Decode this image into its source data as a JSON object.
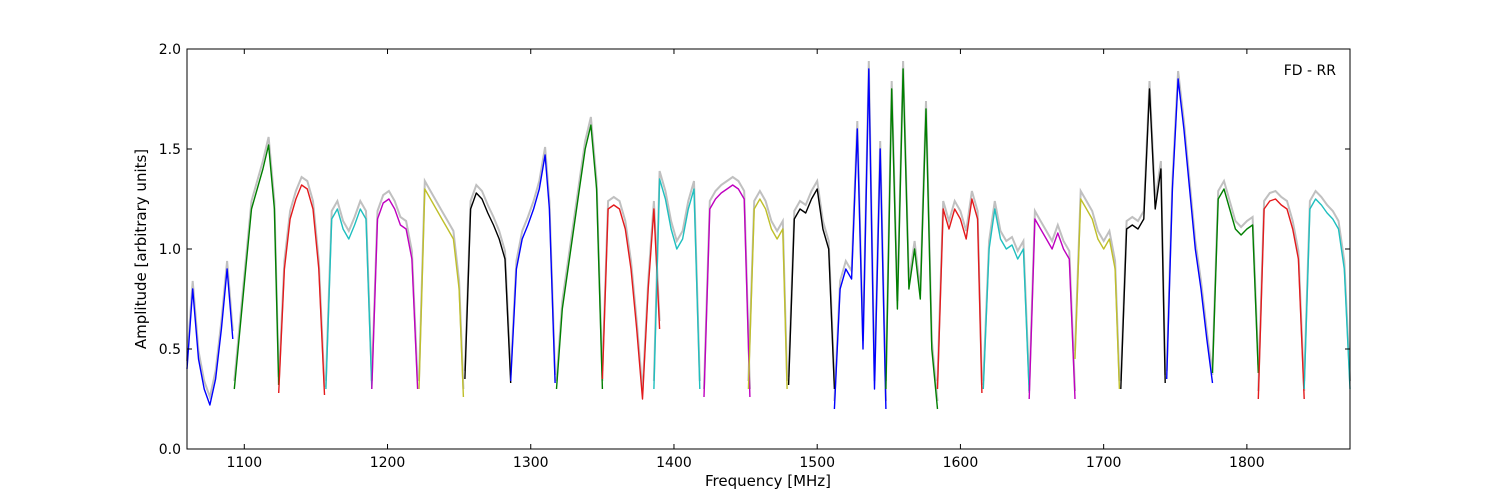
{
  "chart_data": {
    "type": "line",
    "xlabel": "Frequency [MHz]",
    "ylabel": "Amplitude [arbitrary units]",
    "annotation": "FD - RR",
    "xlim": [
      1060,
      1872
    ],
    "ylim": [
      0.0,
      2.0
    ],
    "xticks": [
      1100,
      1200,
      1300,
      1400,
      1500,
      1600,
      1700,
      1800
    ],
    "xtick_labels": [
      "1100",
      "1200",
      "1300",
      "1400",
      "1500",
      "1600",
      "1700",
      "1800"
    ],
    "yticks": [
      0.0,
      0.5,
      1.0,
      1.5,
      2.0
    ],
    "ytick_labels": [
      "0.0",
      "0.5",
      "1.0",
      "1.5",
      "2.0"
    ],
    "grid": false,
    "background_color": "#c0c0c0",
    "colors": {
      "blue": "#0000ff",
      "green": "#007f00",
      "red": "#e31a1c",
      "cyan": "#1fbfbf",
      "magenta": "#bf00bf",
      "yellow": "#bfbf2a",
      "black": "#000000"
    },
    "bands": [
      {
        "color": "blue",
        "x": [
          1060,
          1064,
          1068,
          1072,
          1076,
          1080,
          1084,
          1088,
          1092
        ],
        "y": [
          0.4,
          0.8,
          0.45,
          0.3,
          0.22,
          0.35,
          0.6,
          0.9,
          0.55
        ]
      },
      {
        "color": "green",
        "x": [
          1093,
          1097,
          1101,
          1105,
          1109,
          1113,
          1117,
          1121,
          1124
        ],
        "y": [
          0.3,
          0.6,
          0.9,
          1.2,
          1.3,
          1.4,
          1.52,
          1.2,
          0.32
        ]
      },
      {
        "color": "red",
        "x": [
          1124,
          1128,
          1132,
          1136,
          1140,
          1144,
          1148,
          1152,
          1156
        ],
        "y": [
          0.28,
          0.9,
          1.15,
          1.25,
          1.32,
          1.3,
          1.2,
          0.9,
          0.27
        ]
      },
      {
        "color": "cyan",
        "x": [
          1157,
          1161,
          1165,
          1169,
          1173,
          1177,
          1181,
          1185,
          1189
        ],
        "y": [
          0.3,
          1.15,
          1.2,
          1.1,
          1.05,
          1.12,
          1.2,
          1.15,
          0.3
        ]
      },
      {
        "color": "magenta",
        "x": [
          1189,
          1193,
          1197,
          1201,
          1205,
          1209,
          1213,
          1217,
          1221
        ],
        "y": [
          0.3,
          1.15,
          1.23,
          1.25,
          1.2,
          1.12,
          1.1,
          0.95,
          0.3
        ]
      },
      {
        "color": "yellow",
        "x": [
          1222,
          1226,
          1230,
          1234,
          1238,
          1242,
          1246,
          1250,
          1253
        ],
        "y": [
          0.3,
          1.3,
          1.25,
          1.2,
          1.15,
          1.1,
          1.05,
          0.8,
          0.26
        ]
      },
      {
        "color": "black",
        "x": [
          1254,
          1258,
          1262,
          1266,
          1270,
          1274,
          1278,
          1282,
          1286
        ],
        "y": [
          0.35,
          1.2,
          1.28,
          1.25,
          1.18,
          1.12,
          1.05,
          0.95,
          0.33
        ]
      },
      {
        "color": "blue",
        "x": [
          1286,
          1290,
          1294,
          1298,
          1302,
          1306,
          1310,
          1313,
          1317
        ],
        "y": [
          0.34,
          0.9,
          1.05,
          1.12,
          1.2,
          1.3,
          1.47,
          1.2,
          0.33
        ]
      },
      {
        "color": "green",
        "x": [
          1318,
          1322,
          1326,
          1330,
          1334,
          1338,
          1342,
          1346,
          1350
        ],
        "y": [
          0.3,
          0.7,
          0.9,
          1.1,
          1.3,
          1.5,
          1.62,
          1.3,
          0.3
        ]
      },
      {
        "color": "red",
        "x": [
          1350,
          1354,
          1358,
          1362,
          1366,
          1370,
          1374,
          1378,
          1382,
          1386,
          1390
        ],
        "y": [
          0.35,
          1.2,
          1.22,
          1.2,
          1.1,
          0.9,
          0.6,
          0.25,
          0.8,
          1.2,
          0.6
        ]
      },
      {
        "color": "cyan",
        "x": [
          1386,
          1390,
          1394,
          1398,
          1402,
          1406,
          1410,
          1414,
          1418
        ],
        "y": [
          0.3,
          1.35,
          1.25,
          1.1,
          1.0,
          1.05,
          1.2,
          1.3,
          0.3
        ]
      },
      {
        "color": "magenta",
        "x": [
          1421,
          1425,
          1429,
          1433,
          1437,
          1441,
          1445,
          1449,
          1453
        ],
        "y": [
          0.26,
          1.2,
          1.25,
          1.28,
          1.3,
          1.32,
          1.3,
          1.25,
          0.26
        ]
      },
      {
        "color": "yellow",
        "x": [
          1452,
          1456,
          1460,
          1464,
          1468,
          1472,
          1476,
          1479
        ],
        "y": [
          0.3,
          1.2,
          1.25,
          1.2,
          1.1,
          1.05,
          1.1,
          0.3
        ]
      },
      {
        "color": "black",
        "x": [
          1480,
          1484,
          1488,
          1492,
          1496,
          1500,
          1504,
          1508,
          1512
        ],
        "y": [
          0.32,
          1.15,
          1.2,
          1.18,
          1.25,
          1.3,
          1.1,
          1.0,
          0.3
        ]
      },
      {
        "color": "blue",
        "x": [
          1512,
          1516,
          1520,
          1524,
          1528,
          1532,
          1536,
          1540,
          1544,
          1548
        ],
        "y": [
          0.2,
          0.8,
          0.9,
          0.85,
          1.6,
          0.5,
          1.9,
          0.3,
          1.5,
          0.2
        ]
      },
      {
        "color": "green",
        "x": [
          1548,
          1552,
          1556,
          1560,
          1564,
          1568,
          1572,
          1576,
          1580,
          1584
        ],
        "y": [
          0.3,
          1.8,
          0.7,
          1.9,
          0.8,
          1.0,
          0.75,
          1.7,
          0.5,
          0.2
        ]
      },
      {
        "color": "red",
        "x": [
          1584,
          1588,
          1592,
          1596,
          1600,
          1604,
          1608,
          1612,
          1615
        ],
        "y": [
          0.3,
          1.2,
          1.1,
          1.2,
          1.15,
          1.05,
          1.25,
          1.15,
          0.28
        ]
      },
      {
        "color": "cyan",
        "x": [
          1616,
          1620,
          1624,
          1628,
          1632,
          1636,
          1640,
          1644,
          1648
        ],
        "y": [
          0.3,
          1.0,
          1.2,
          1.05,
          1.0,
          1.02,
          0.95,
          1.0,
          0.28
        ]
      },
      {
        "color": "magenta",
        "x": [
          1648,
          1652,
          1656,
          1660,
          1664,
          1668,
          1672,
          1676,
          1680
        ],
        "y": [
          0.25,
          1.15,
          1.1,
          1.05,
          1.0,
          1.08,
          1.0,
          0.95,
          0.25
        ]
      },
      {
        "color": "yellow",
        "x": [
          1680,
          1684,
          1688,
          1692,
          1696,
          1700,
          1704,
          1708,
          1711
        ],
        "y": [
          0.45,
          1.25,
          1.2,
          1.15,
          1.05,
          1.0,
          1.05,
          0.9,
          0.3
        ]
      },
      {
        "color": "black",
        "x": [
          1712,
          1716,
          1720,
          1724,
          1728,
          1732,
          1736,
          1740,
          1743
        ],
        "y": [
          0.3,
          1.1,
          1.12,
          1.1,
          1.15,
          1.8,
          1.2,
          1.4,
          0.33
        ]
      },
      {
        "color": "blue",
        "x": [
          1744,
          1748,
          1752,
          1756,
          1760,
          1764,
          1768,
          1772,
          1776
        ],
        "y": [
          0.35,
          1.3,
          1.85,
          1.6,
          1.3,
          1.0,
          0.8,
          0.55,
          0.33
        ]
      },
      {
        "color": "green",
        "x": [
          1776,
          1780,
          1784,
          1788,
          1792,
          1796,
          1800,
          1804,
          1808
        ],
        "y": [
          0.38,
          1.25,
          1.3,
          1.2,
          1.1,
          1.07,
          1.1,
          1.12,
          0.38
        ]
      },
      {
        "color": "red",
        "x": [
          1808,
          1812,
          1816,
          1820,
          1824,
          1828,
          1832,
          1836,
          1840
        ],
        "y": [
          0.25,
          1.2,
          1.24,
          1.25,
          1.22,
          1.2,
          1.1,
          0.95,
          0.25
        ]
      },
      {
        "color": "cyan",
        "x": [
          1840,
          1844,
          1848,
          1852,
          1856,
          1860,
          1864,
          1868,
          1872
        ],
        "y": [
          0.3,
          1.2,
          1.25,
          1.22,
          1.18,
          1.15,
          1.1,
          0.9,
          0.3
        ]
      }
    ]
  }
}
